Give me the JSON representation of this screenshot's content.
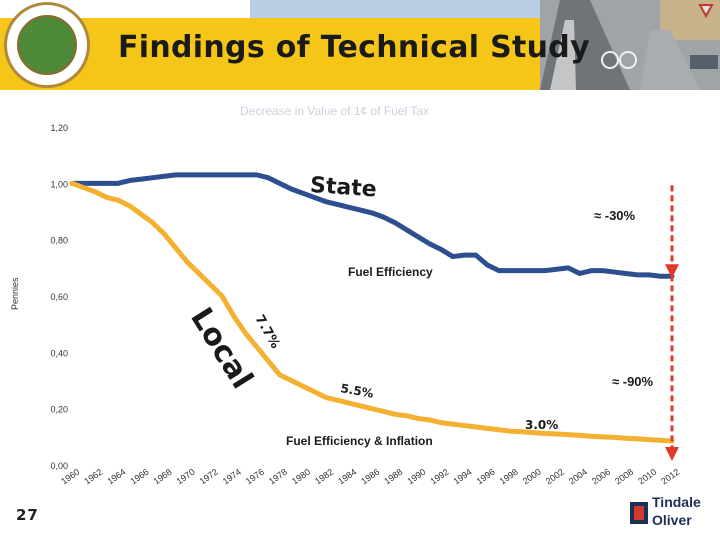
{
  "slide": {
    "title": "Findings of Technical Study",
    "page_number": "27"
  },
  "logo": {
    "line1": "Tindale",
    "line2": "Oliver"
  },
  "colors": {
    "state": "#2e4f8f",
    "local": "#f4b030",
    "marker": "#e03a2a",
    "title_band": "#f5c518"
  },
  "chart_data": {
    "type": "line",
    "title": "Decrease in Value of 1¢ of Fuel Tax",
    "ylabel": "Pennies",
    "xlabel": "",
    "ylim": [
      0,
      1.2
    ],
    "yticks": [
      "0,00",
      "0,20",
      "0,40",
      "0,60",
      "0,80",
      "1,00",
      "1,20"
    ],
    "ytick_values": [
      0,
      0.2,
      0.4,
      0.6,
      0.8,
      1.0,
      1.2
    ],
    "x": [
      1960,
      1961,
      1962,
      1963,
      1964,
      1965,
      1966,
      1967,
      1968,
      1969,
      1970,
      1971,
      1972,
      1973,
      1974,
      1975,
      1976,
      1977,
      1978,
      1979,
      1980,
      1981,
      1982,
      1983,
      1984,
      1985,
      1986,
      1987,
      1988,
      1989,
      1990,
      1991,
      1992,
      1993,
      1994,
      1995,
      1996,
      1997,
      1998,
      1999,
      2000,
      2001,
      2002,
      2003,
      2004,
      2005,
      2006,
      2007,
      2008,
      2009,
      2010,
      2011,
      2012
    ],
    "xtick_labels": [
      "1960",
      "1962",
      "1964",
      "1966",
      "1968",
      "1970",
      "1972",
      "1974",
      "1976",
      "1978",
      "1980",
      "1982",
      "1984",
      "1986",
      "1988",
      "1990",
      "1992",
      "1994",
      "1996",
      "1998",
      "2000",
      "2002",
      "2004",
      "2006",
      "2008",
      "2010",
      "2012"
    ],
    "series": [
      {
        "name": "State",
        "values": [
          1.0,
          1.0,
          1.0,
          1.0,
          1.0,
          1.01,
          1.015,
          1.02,
          1.025,
          1.03,
          1.03,
          1.03,
          1.03,
          1.03,
          1.03,
          1.03,
          1.03,
          1.02,
          1.0,
          0.98,
          0.965,
          0.95,
          0.935,
          0.925,
          0.915,
          0.905,
          0.895,
          0.88,
          0.86,
          0.835,
          0.81,
          0.785,
          0.765,
          0.74,
          0.745,
          0.745,
          0.71,
          0.69,
          0.69,
          0.69,
          0.69,
          0.69,
          0.695,
          0.7,
          0.68,
          0.69,
          0.69,
          0.685,
          0.68,
          0.675,
          0.675,
          0.67,
          0.67
        ]
      },
      {
        "name": "Local",
        "values": [
          1.0,
          0.985,
          0.97,
          0.95,
          0.94,
          0.92,
          0.89,
          0.86,
          0.82,
          0.77,
          0.72,
          0.68,
          0.64,
          0.6,
          0.53,
          0.47,
          0.42,
          0.37,
          0.32,
          0.3,
          0.28,
          0.26,
          0.24,
          0.23,
          0.22,
          0.21,
          0.2,
          0.19,
          0.18,
          0.175,
          0.165,
          0.16,
          0.15,
          0.145,
          0.14,
          0.135,
          0.13,
          0.125,
          0.12,
          0.118,
          0.115,
          0.112,
          0.11,
          0.108,
          0.105,
          0.102,
          0.1,
          0.098,
          0.095,
          0.093,
          0.09,
          0.088,
          0.085
        ]
      }
    ],
    "annotations": {
      "state_label": "State",
      "local_label": "Local",
      "fuel_efficiency": "Fuel Efficiency",
      "fuel_efficiency_inflation": "Fuel Efficiency & Inflation",
      "pct_7_7": "7.7%",
      "pct_5_5": "5.5%",
      "pct_3_0": "3.0%",
      "state_change": "≈ -30%",
      "local_change": "≈ -90%"
    }
  }
}
